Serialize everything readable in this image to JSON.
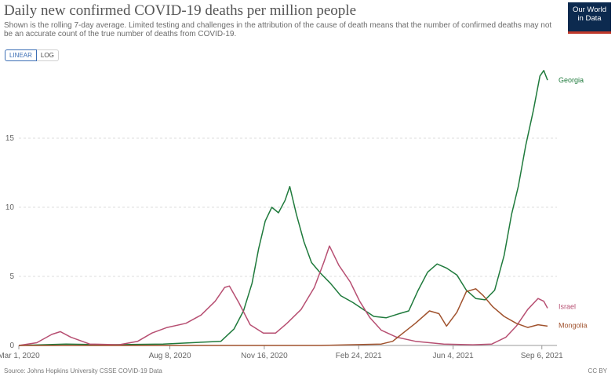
{
  "header": {
    "title": "Daily new confirmed COVID-19 deaths per million people",
    "subtitle": "Shown is the rolling 7-day average. Limited testing and challenges in the attribution of the cause of death means that the number of confirmed deaths may not be an accurate count of the true number of deaths from COVID-19."
  },
  "logo": {
    "line1": "Our World",
    "line2": "in Data",
    "bg": "#0c2a4f",
    "accent": "#c0392b"
  },
  "controls": {
    "linear_label": "LINEAR",
    "log_label": "LOG"
  },
  "footer": {
    "source": "Source: Johns Hopkins University CSSE COVID-19 Data",
    "license": "CC BY"
  },
  "chart_data": {
    "type": "line",
    "xlim": [
      "2020-03-01",
      "2021-09-22"
    ],
    "ylim": [
      0,
      20
    ],
    "grid": true,
    "legend": "line-end labels",
    "x_ticks": [
      {
        "date": "2020-03-01",
        "label": "Mar 1, 2020"
      },
      {
        "date": "2020-08-08",
        "label": "Aug 8, 2020"
      },
      {
        "date": "2020-11-16",
        "label": "Nov 16, 2020"
      },
      {
        "date": "2021-02-24",
        "label": "Feb 24, 2021"
      },
      {
        "date": "2021-06-04",
        "label": "Jun 4, 2021"
      },
      {
        "date": "2021-09-06",
        "label": "Sep 6, 2021"
      }
    ],
    "y_ticks": [
      {
        "value": 0,
        "label": "0"
      },
      {
        "value": 5,
        "label": "5"
      },
      {
        "value": 10,
        "label": "10"
      },
      {
        "value": 15,
        "label": "15"
      }
    ],
    "series": [
      {
        "name": "Georgia",
        "color": "#1f7a3c",
        "points": [
          [
            "2020-03-01",
            0
          ],
          [
            "2020-04-20",
            0.1
          ],
          [
            "2020-06-01",
            0.05
          ],
          [
            "2020-08-01",
            0.1
          ],
          [
            "2020-10-01",
            0.3
          ],
          [
            "2020-10-15",
            1.2
          ],
          [
            "2020-10-25",
            2.5
          ],
          [
            "2020-11-03",
            4.5
          ],
          [
            "2020-11-10",
            7
          ],
          [
            "2020-11-17",
            9
          ],
          [
            "2020-11-24",
            10
          ],
          [
            "2020-12-01",
            9.6
          ],
          [
            "2020-12-08",
            10.5
          ],
          [
            "2020-12-13",
            11.5
          ],
          [
            "2020-12-20",
            9.5
          ],
          [
            "2020-12-28",
            7.5
          ],
          [
            "2021-01-05",
            6
          ],
          [
            "2021-01-15",
            5.2
          ],
          [
            "2021-01-25",
            4.5
          ],
          [
            "2021-02-05",
            3.6
          ],
          [
            "2021-02-18",
            3.1
          ],
          [
            "2021-03-01",
            2.6
          ],
          [
            "2021-03-12",
            2.1
          ],
          [
            "2021-03-25",
            2
          ],
          [
            "2021-04-08",
            2.3
          ],
          [
            "2021-04-18",
            2.5
          ],
          [
            "2021-04-28",
            4
          ],
          [
            "2021-05-08",
            5.3
          ],
          [
            "2021-05-18",
            5.9
          ],
          [
            "2021-05-28",
            5.6
          ],
          [
            "2021-06-08",
            5.1
          ],
          [
            "2021-06-18",
            4
          ],
          [
            "2021-06-28",
            3.4
          ],
          [
            "2021-07-08",
            3.3
          ],
          [
            "2021-07-18",
            4
          ],
          [
            "2021-07-28",
            6.5
          ],
          [
            "2021-08-05",
            9.5
          ],
          [
            "2021-08-12",
            11.5
          ],
          [
            "2021-08-20",
            14.5
          ],
          [
            "2021-08-28",
            17
          ],
          [
            "2021-09-04",
            19.5
          ],
          [
            "2021-09-08",
            19.9
          ],
          [
            "2021-09-12",
            19.2
          ]
        ]
      },
      {
        "name": "Israel",
        "color": "#b74f72",
        "points": [
          [
            "2020-03-01",
            0
          ],
          [
            "2020-03-20",
            0.2
          ],
          [
            "2020-04-05",
            0.8
          ],
          [
            "2020-04-14",
            1
          ],
          [
            "2020-04-25",
            0.6
          ],
          [
            "2020-05-15",
            0.1
          ],
          [
            "2020-06-15",
            0.05
          ],
          [
            "2020-07-05",
            0.3
          ],
          [
            "2020-07-20",
            0.9
          ],
          [
            "2020-08-05",
            1.3
          ],
          [
            "2020-08-25",
            1.6
          ],
          [
            "2020-09-10",
            2.2
          ],
          [
            "2020-09-25",
            3.2
          ],
          [
            "2020-10-05",
            4.2
          ],
          [
            "2020-10-10",
            4.3
          ],
          [
            "2020-10-20",
            3.1
          ],
          [
            "2020-11-01",
            1.5
          ],
          [
            "2020-11-15",
            0.9
          ],
          [
            "2020-11-28",
            0.9
          ],
          [
            "2020-12-10",
            1.6
          ],
          [
            "2020-12-25",
            2.6
          ],
          [
            "2021-01-08",
            4.2
          ],
          [
            "2021-01-18",
            6
          ],
          [
            "2021-01-24",
            7.2
          ],
          [
            "2021-02-03",
            5.8
          ],
          [
            "2021-02-15",
            4.6
          ],
          [
            "2021-02-25",
            3.2
          ],
          [
            "2021-03-08",
            2
          ],
          [
            "2021-03-20",
            1.1
          ],
          [
            "2021-04-05",
            0.6
          ],
          [
            "2021-04-25",
            0.3
          ],
          [
            "2021-05-25",
            0.1
          ],
          [
            "2021-06-25",
            0.05
          ],
          [
            "2021-07-15",
            0.1
          ],
          [
            "2021-07-30",
            0.6
          ],
          [
            "2021-08-10",
            1.4
          ],
          [
            "2021-08-22",
            2.6
          ],
          [
            "2021-09-02",
            3.4
          ],
          [
            "2021-09-08",
            3.2
          ],
          [
            "2021-09-12",
            2.7
          ]
        ]
      },
      {
        "name": "Mongolia",
        "color": "#a0522d",
        "points": [
          [
            "2020-03-01",
            0
          ],
          [
            "2021-01-15",
            0
          ],
          [
            "2021-02-15",
            0.05
          ],
          [
            "2021-03-20",
            0.1
          ],
          [
            "2021-04-01",
            0.3
          ],
          [
            "2021-04-12",
            0.9
          ],
          [
            "2021-04-25",
            1.6
          ],
          [
            "2021-05-10",
            2.5
          ],
          [
            "2021-05-20",
            2.3
          ],
          [
            "2021-05-28",
            1.4
          ],
          [
            "2021-06-08",
            2.4
          ],
          [
            "2021-06-18",
            3.9
          ],
          [
            "2021-06-28",
            4.1
          ],
          [
            "2021-07-06",
            3.6
          ],
          [
            "2021-07-16",
            2.8
          ],
          [
            "2021-07-28",
            2.1
          ],
          [
            "2021-08-10",
            1.6
          ],
          [
            "2021-08-22",
            1.3
          ],
          [
            "2021-09-02",
            1.5
          ],
          [
            "2021-09-12",
            1.4
          ]
        ]
      }
    ]
  }
}
